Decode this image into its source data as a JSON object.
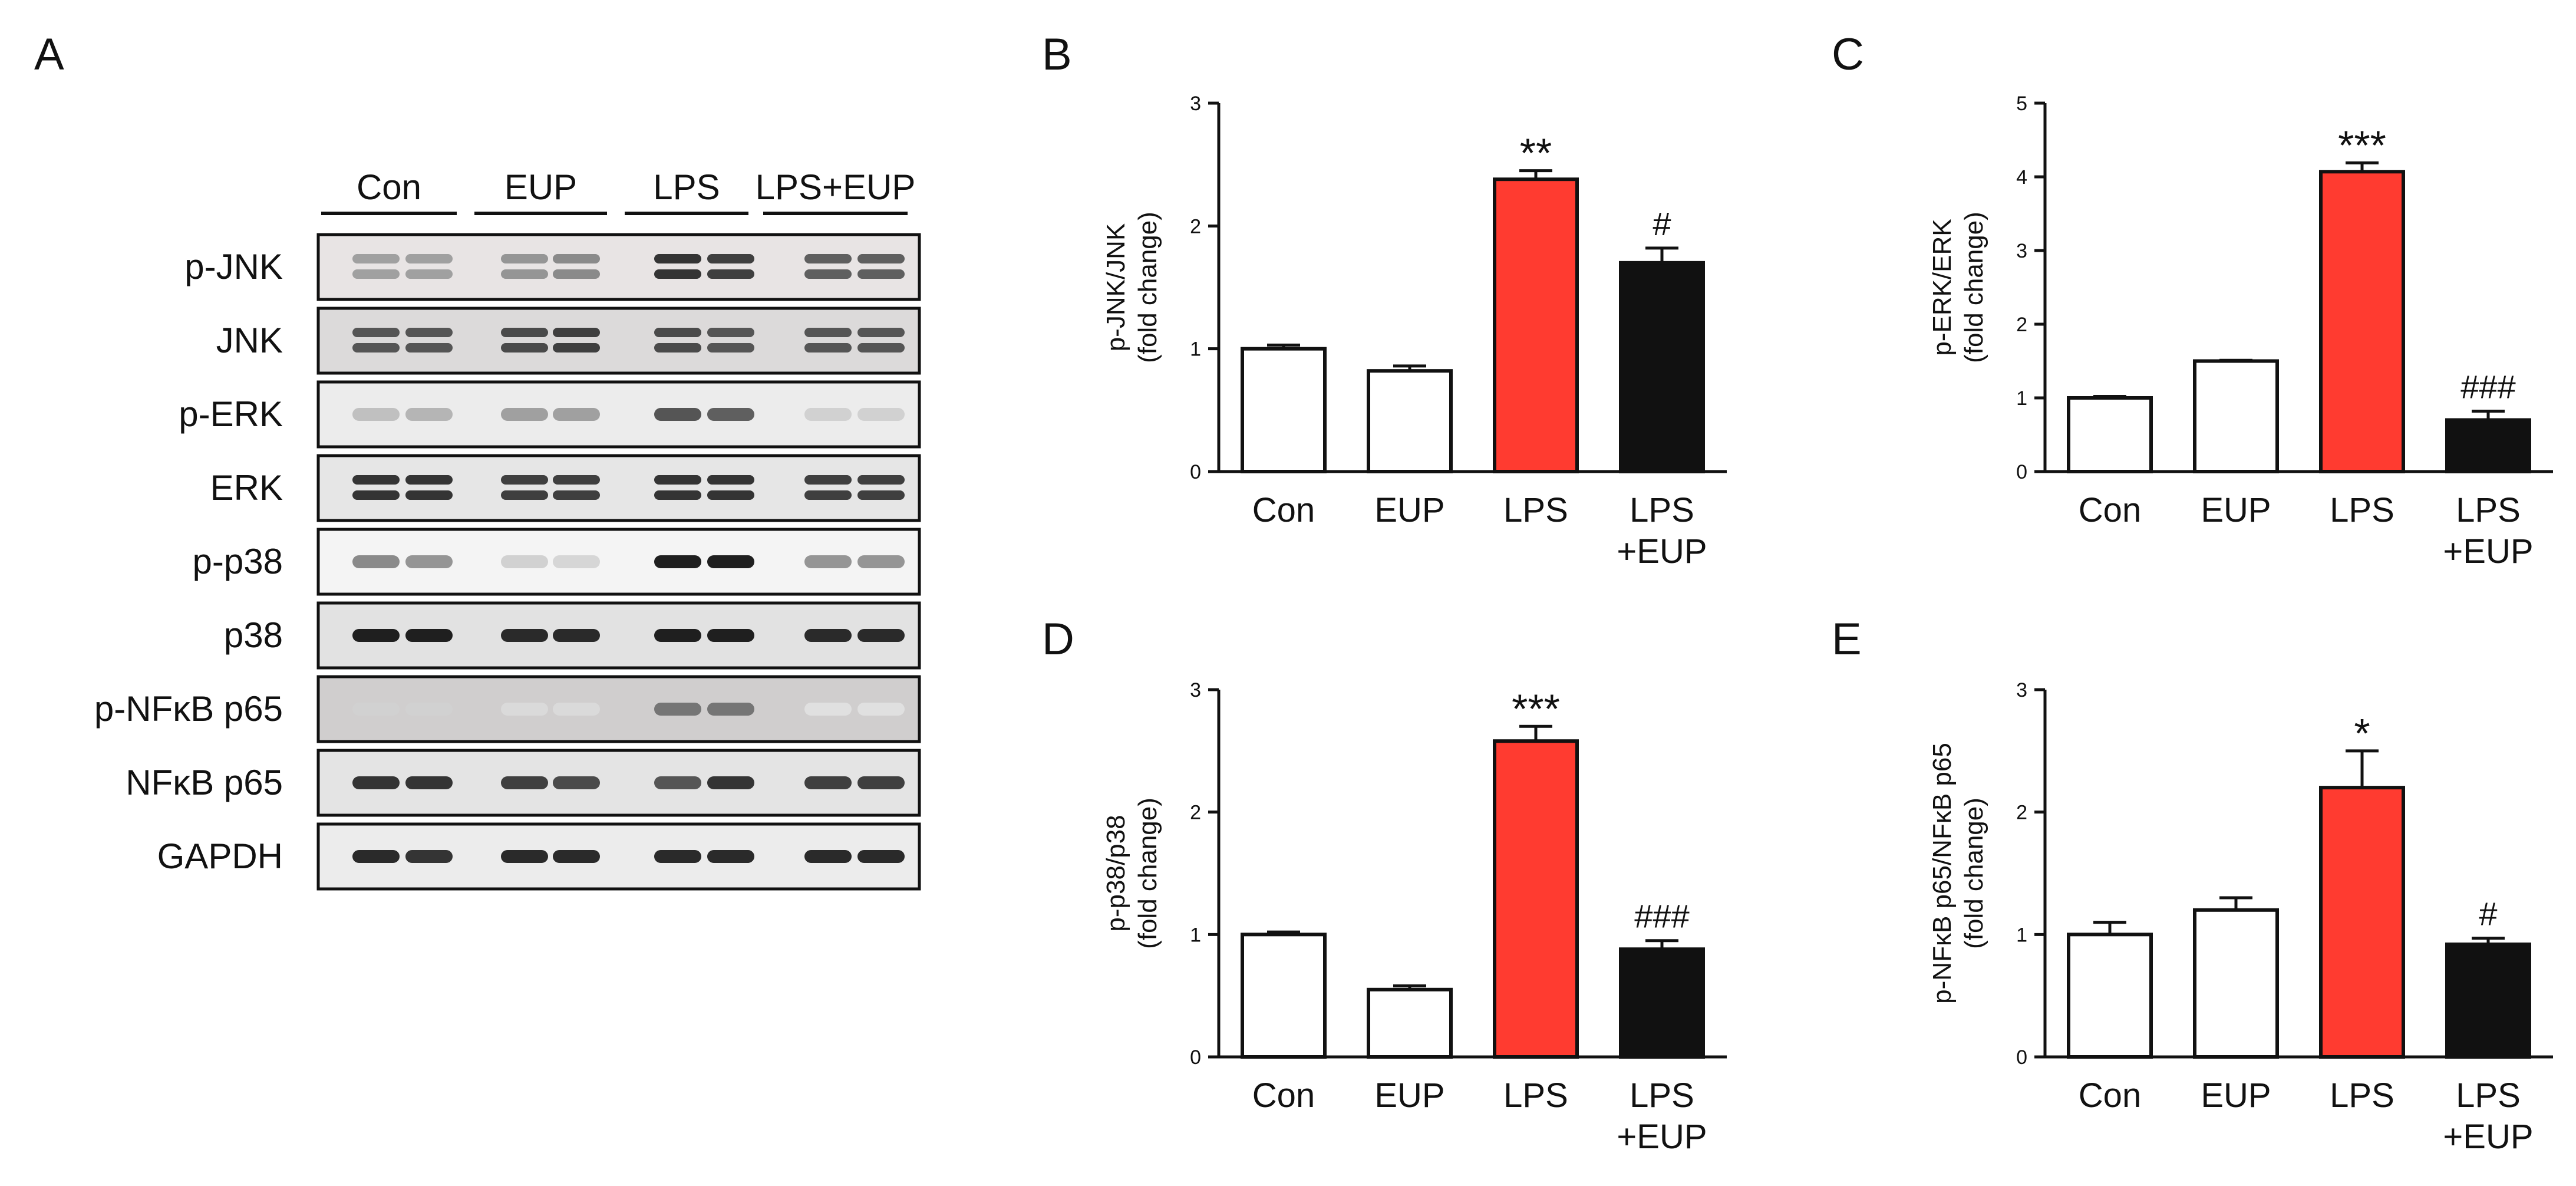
{
  "panel_labels": [
    "A",
    "B",
    "C",
    "D",
    "E"
  ],
  "blot": {
    "groups": [
      "Con",
      "EUP",
      "LPS",
      "LPS+EUP"
    ],
    "rows": [
      "p-JNK",
      "JNK",
      "p-ERK",
      "ERK",
      "p-p38",
      "p38",
      "p-NFκB p65",
      "NFκB p65",
      "GAPDH"
    ]
  },
  "chart_data": [
    {
      "panel": "B",
      "type": "bar",
      "categories": [
        [
          "Con"
        ],
        [
          "EUP"
        ],
        [
          "LPS"
        ],
        [
          "LPS",
          "+EUP"
        ]
      ],
      "values": [
        1.0,
        0.82,
        2.38,
        1.7
      ],
      "errors": [
        0.03,
        0.04,
        0.07,
        0.12
      ],
      "significance": [
        "",
        "",
        "**",
        "#"
      ],
      "ylabel_lines": [
        "p-JNK/JNK",
        "(fold change)"
      ],
      "ylim": [
        0,
        3
      ],
      "yticks": [
        0,
        1,
        2,
        3
      ],
      "bar_colors": [
        "#ffffff",
        "#ffffff",
        "#ff3b30",
        "#111111"
      ]
    },
    {
      "panel": "C",
      "type": "bar",
      "categories": [
        [
          "Con"
        ],
        [
          "EUP"
        ],
        [
          "LPS"
        ],
        [
          "LPS",
          "+EUP"
        ]
      ],
      "values": [
        1.0,
        1.5,
        4.07,
        0.7
      ],
      "errors": [
        0.02,
        0.01,
        0.12,
        0.12
      ],
      "significance": [
        "",
        "",
        "***",
        "###"
      ],
      "ylabel_lines": [
        "p-ERK/ERK",
        "(fold change)"
      ],
      "ylim": [
        0,
        5
      ],
      "yticks": [
        0,
        1,
        2,
        3,
        4,
        5
      ],
      "bar_colors": [
        "#ffffff",
        "#ffffff",
        "#ff3b30",
        "#111111"
      ]
    },
    {
      "panel": "D",
      "type": "bar",
      "categories": [
        [
          "Con"
        ],
        [
          "EUP"
        ],
        [
          "LPS"
        ],
        [
          "LPS",
          "+EUP"
        ]
      ],
      "values": [
        1.0,
        0.55,
        2.58,
        0.88
      ],
      "errors": [
        0.02,
        0.03,
        0.12,
        0.07
      ],
      "significance": [
        "",
        "",
        "***",
        "###"
      ],
      "ylabel_lines": [
        "p-p38/p38",
        "(fold change)"
      ],
      "ylim": [
        0,
        3
      ],
      "yticks": [
        0,
        1,
        2,
        3
      ],
      "bar_colors": [
        "#ffffff",
        "#ffffff",
        "#ff3b30",
        "#111111"
      ]
    },
    {
      "panel": "E",
      "type": "bar",
      "categories": [
        [
          "Con"
        ],
        [
          "EUP"
        ],
        [
          "LPS"
        ],
        [
          "LPS",
          "+EUP"
        ]
      ],
      "values": [
        1.0,
        1.2,
        2.2,
        0.92
      ],
      "errors": [
        0.1,
        0.1,
        0.3,
        0.05
      ],
      "significance": [
        "",
        "",
        "*",
        "#"
      ],
      "ylabel_lines": [
        "p-NFκB p65/NFκB p65",
        "(fold change)"
      ],
      "ylim": [
        0,
        3
      ],
      "yticks": [
        0,
        1,
        2,
        3
      ],
      "bar_colors": [
        "#ffffff",
        "#ffffff",
        "#ff3b30",
        "#111111"
      ]
    }
  ]
}
